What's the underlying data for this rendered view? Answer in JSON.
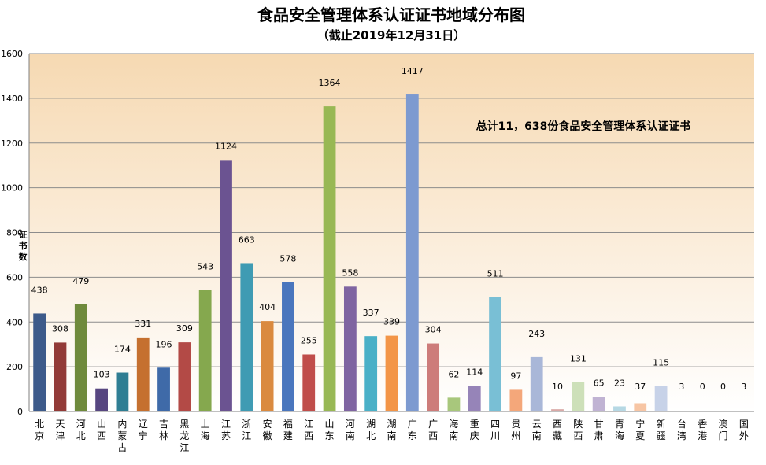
{
  "chart_data": {
    "type": "bar",
    "title": "食品安全管理体系认证证书地域分布图",
    "subtitle": "（截止2019年12月31日）",
    "ylabel": "证书数",
    "xlabel": "",
    "ylim": [
      0,
      1600
    ],
    "yticks": [
      "0",
      "200",
      "400",
      "600",
      "800",
      "1000",
      "1200",
      "1400",
      "1600"
    ],
    "grid": true,
    "annotation": "总计11，638份食品安全管理体系认证证书",
    "categories": [
      "北京",
      "天津",
      "河北",
      "山西",
      "内蒙古",
      "辽宁",
      "吉林",
      "黑龙江",
      "上海",
      "江苏",
      "浙江",
      "安徽",
      "福建",
      "江西",
      "山东",
      "河南",
      "湖北",
      "湖南",
      "广东",
      "广西",
      "海南",
      "重庆",
      "四川",
      "贵州",
      "云南",
      "西藏",
      "陕西",
      "甘肃",
      "青海",
      "宁夏",
      "新疆",
      "台湾",
      "香港",
      "澳门",
      "国外"
    ],
    "values": [
      438,
      308,
      479,
      103,
      174,
      331,
      196,
      309,
      543,
      1124,
      663,
      404,
      578,
      255,
      1364,
      558,
      337,
      339,
      1417,
      304,
      62,
      114,
      511,
      97,
      243,
      10,
      131,
      65,
      23,
      37,
      115,
      3,
      0,
      0,
      3
    ],
    "colors": [
      "#3d5a8a",
      "#923a37",
      "#6f8a3c",
      "#574680",
      "#2f7e93",
      "#c5702f",
      "#3f6aa8",
      "#b34a46",
      "#85a84e",
      "#6b5391",
      "#3f9bb3",
      "#da8a3f",
      "#4a76bd",
      "#c04d4a",
      "#98b854",
      "#7f64a1",
      "#4ab0c7",
      "#f39547",
      "#7d9ad0",
      "#cd7c7a",
      "#a8c77c",
      "#9684b8",
      "#79bfd5",
      "#f4a77a",
      "#a9b7d8",
      "#d9a9a7",
      "#cde0b9",
      "#c0b3d3",
      "#b6d8e4",
      "#f7c5a4",
      "#c7d2e8",
      "#e8c7c6",
      "#e2edd7",
      "#dcd4e6",
      "#d5e9f0"
    ],
    "value_labels": [
      "438",
      "308",
      "479",
      "103",
      "174",
      "331",
      "196",
      "309",
      "543",
      "1124",
      "663",
      "404",
      "578",
      "255",
      "1364",
      "558",
      "337",
      "339",
      "1417",
      "304",
      "62",
      "114",
      "511",
      "97",
      "243",
      "10",
      "131",
      "65",
      "23",
      "37",
      "115",
      "3",
      "0",
      "0",
      "3"
    ]
  }
}
